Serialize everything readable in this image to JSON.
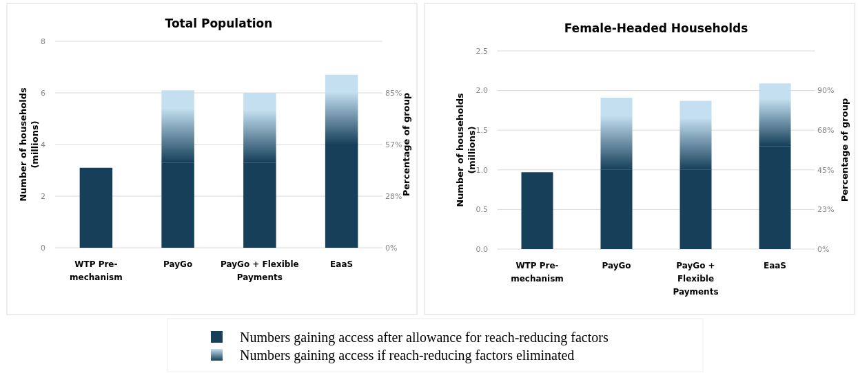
{
  "chart_data": [
    {
      "type": "bar",
      "title": "Total Population",
      "ylabel": "Number of households (millions)",
      "y2label": "Percentage of group",
      "categories": [
        "WTP Pre-mechanism",
        "PayGo",
        "PayGo + Flexible Payments",
        "EaaS"
      ],
      "stacked": true,
      "legend": "bottom",
      "grid": "y",
      "ylim": [
        0,
        8
      ],
      "yticks": [
        0,
        2,
        4,
        6,
        8
      ],
      "y2lim": [
        0,
        113.33
      ],
      "y2ticks": [
        {
          "value": 0,
          "label": "0%"
        },
        {
          "value": 28.33,
          "label": "28%"
        },
        {
          "value": 56.67,
          "label": "57%"
        },
        {
          "value": 85,
          "label": "85%"
        }
      ],
      "series": [
        {
          "name": "Numbers gaining access after allowance for reach-reducing factors",
          "color": "#163f5a",
          "values": [
            3.1,
            3.3,
            3.3,
            4.0
          ]
        },
        {
          "name": "Numbers gaining access if reach-reducing factors eliminated",
          "color": "#c3dff0",
          "values": [
            null,
            2.8,
            2.7,
            2.7
          ]
        }
      ]
    },
    {
      "type": "bar",
      "title": "Female-Headed Households",
      "ylabel": "Number of households (millions)",
      "y2label": "Percentage of group",
      "categories": [
        "WTP Pre-mechanism",
        "PayGo",
        "PayGo + Flexible Payments",
        "EaaS"
      ],
      "stacked": true,
      "grid": "y",
      "ylim": [
        0,
        2.5
      ],
      "yticks": [
        {
          "value": 0,
          "label": "0.0"
        },
        {
          "value": 0.5,
          "label": "0.5"
        },
        {
          "value": 1,
          "label": "1.0"
        },
        {
          "value": 1.5,
          "label": "1.5"
        },
        {
          "value": 2,
          "label": "2.0"
        },
        {
          "value": 2.5,
          "label": "2.5"
        }
      ],
      "y2lim": [
        0,
        113
      ],
      "y2ticks": [
        {
          "value": 0,
          "label": "0%"
        },
        {
          "value": 22.6,
          "label": "23%"
        },
        {
          "value": 45.2,
          "label": "45%"
        },
        {
          "value": 67.8,
          "label": "68%"
        },
        {
          "value": 90.4,
          "label": "90%"
        }
      ],
      "series": [
        {
          "color": "#163f5a",
          "values": [
            0.97,
            1.0,
            1.0,
            1.3
          ]
        },
        {
          "color": "#c3dff0",
          "values": [
            null,
            0.91,
            0.87,
            0.79
          ]
        }
      ]
    }
  ]
}
